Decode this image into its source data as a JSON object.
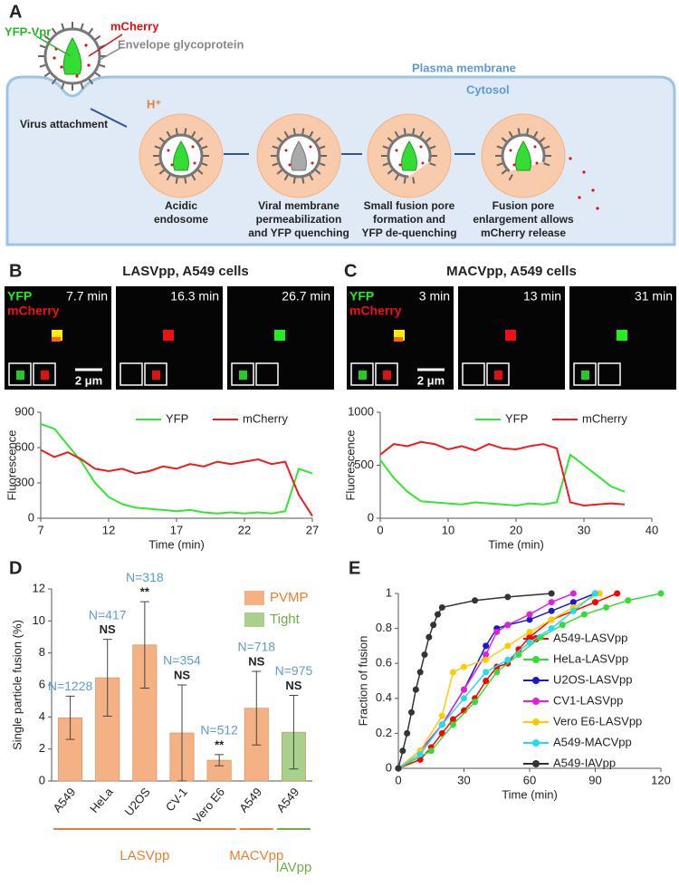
{
  "panel_a": {
    "panel_label": "A",
    "yfp_vpr": "YFP-Vpr",
    "mcherry": "mCherry",
    "envelope": "Envelope glycoprotein",
    "plasma_membrane": "Plasma membrane",
    "cytosol": "Cytosol",
    "virus_attachment": "Virus attachment",
    "proton": "H⁺",
    "steps": [
      [
        "Acidic",
        "endosome"
      ],
      [
        "Viral membrane",
        "permeabilization",
        "and YFP quenching"
      ],
      [
        "Small fusion pore",
        "formation and",
        "YFP de-quenching"
      ],
      [
        "Fusion pore",
        "enlargement allows",
        "mCherry release"
      ]
    ]
  },
  "chart_data": [
    {
      "type": "line",
      "panel_label": "B",
      "title": "LASVpp, A549 cells",
      "images": {
        "channels": [
          "YFP",
          "mCherry"
        ],
        "times": [
          "7.7 min",
          "16.3 min",
          "26.7 min"
        ],
        "scale_bar": "2 μm"
      },
      "x_label": "Time (min)",
      "y_label": "Fluorescence",
      "legend": "top-right",
      "xlim": [
        7,
        27
      ],
      "xticks": [
        7,
        12,
        17,
        22,
        27
      ],
      "ylim": [
        0,
        900
      ],
      "yticks": [
        0,
        300,
        600,
        900
      ],
      "x": [
        7,
        8,
        9,
        10,
        11,
        12,
        13,
        14,
        15,
        16,
        17,
        18,
        19,
        20,
        21,
        22,
        23,
        24,
        25,
        26,
        27
      ],
      "series": [
        {
          "name": "YFP",
          "color": "#33e633",
          "values": [
            800,
            760,
            620,
            480,
            300,
            180,
            120,
            90,
            80,
            70,
            60,
            70,
            50,
            40,
            50,
            40,
            50,
            40,
            60,
            420,
            380
          ]
        },
        {
          "name": "mCherry",
          "color": "#ee1c1c",
          "values": [
            580,
            520,
            560,
            500,
            420,
            400,
            420,
            380,
            400,
            440,
            420,
            460,
            440,
            480,
            460,
            480,
            500,
            460,
            480,
            200,
            20
          ]
        }
      ]
    },
    {
      "type": "line",
      "panel_label": "C",
      "title": "MACVpp, A549 cells",
      "images": {
        "channels": [
          "YFP",
          "mCherry"
        ],
        "times": [
          "3 min",
          "13 min",
          "31 min"
        ],
        "scale_bar": "2 μm"
      },
      "x_label": "Time (min)",
      "y_label": "Fluorescence",
      "legend": "top-right",
      "xlim": [
        0,
        40
      ],
      "xticks": [
        0,
        10,
        20,
        30,
        40
      ],
      "ylim": [
        0,
        1000
      ],
      "yticks": [
        0,
        500,
        1000
      ],
      "x": [
        0,
        2,
        4,
        6,
        8,
        10,
        12,
        14,
        16,
        18,
        20,
        22,
        24,
        26,
        28,
        30,
        32,
        34,
        36
      ],
      "series": [
        {
          "name": "YFP",
          "color": "#33e633",
          "values": [
            550,
            380,
            250,
            160,
            150,
            140,
            130,
            150,
            140,
            130,
            120,
            140,
            130,
            150,
            600,
            500,
            400,
            300,
            250
          ]
        },
        {
          "name": "mCherry",
          "color": "#ee1c1c",
          "values": [
            600,
            700,
            680,
            720,
            700,
            650,
            680,
            640,
            700,
            660,
            650,
            680,
            700,
            660,
            150,
            120,
            130,
            140,
            130
          ]
        }
      ]
    },
    {
      "type": "bar",
      "panel_label": "D",
      "y_label": "Single particle fusion (%)",
      "legend": "top-right",
      "categories": [
        "A549",
        "HeLa",
        "U2OS",
        "CV-1",
        "Vero E6",
        "A549",
        "A549"
      ],
      "ylim": [
        0,
        12
      ],
      "yticks": [
        0,
        2,
        4,
        6,
        8,
        10,
        12
      ],
      "series": [
        {
          "name": "PVMP",
          "color": "#f4b183",
          "text_color": "#ed7d31",
          "values": [
            3.95,
            6.45,
            8.5,
            3.0,
            1.3,
            4.55,
            null
          ],
          "errors": [
            1.35,
            2.4,
            2.7,
            3.0,
            0.35,
            2.3,
            null
          ]
        },
        {
          "name": "Tight",
          "color": "#a9d18e",
          "text_color": "#70ad47",
          "values": [
            null,
            null,
            null,
            null,
            null,
            null,
            3.05
          ],
          "errors": [
            null,
            null,
            null,
            null,
            null,
            null,
            2.3
          ]
        }
      ],
      "n_labels": [
        "N=1228",
        "N=417",
        "N=318",
        "N=354",
        "N=512",
        "N=718",
        "N=975"
      ],
      "significance": [
        null,
        "NS",
        "**",
        "NS",
        "**",
        "NS",
        "NS"
      ],
      "annotation_color": "#5b9bd5",
      "groups": [
        {
          "label": "LASVpp",
          "color": "#ed7d31"
        },
        {
          "label": "MACVpp",
          "color": "#ed7d31"
        },
        {
          "label": "IAVpp",
          "color": "#70ad47"
        }
      ]
    },
    {
      "type": "line",
      "panel_label": "E",
      "x_label": "Time (min)",
      "y_label": "Fraction of fusion",
      "legend": "right",
      "markers": true,
      "xlim": [
        0,
        120
      ],
      "xticks": [
        0,
        30,
        60,
        90,
        120
      ],
      "ylim": [
        0,
        1
      ],
      "yticks": [
        0,
        0.2,
        0.4,
        0.6,
        0.8,
        1
      ],
      "series": [
        {
          "name": "A549-LASVpp",
          "color": "#ff0000",
          "x": [
            0,
            10,
            15,
            20,
            25,
            30,
            35,
            40,
            45,
            50,
            55,
            60,
            70,
            80,
            90,
            100
          ],
          "values": [
            0,
            0.05,
            0.12,
            0.2,
            0.28,
            0.33,
            0.4,
            0.5,
            0.58,
            0.6,
            0.68,
            0.75,
            0.85,
            0.9,
            0.95,
            1
          ]
        },
        {
          "name": "HeLa-LASVpp",
          "color": "#33dd33",
          "x": [
            0,
            15,
            25,
            35,
            45,
            55,
            65,
            75,
            85,
            95,
            105,
            120
          ],
          "values": [
            0,
            0.1,
            0.25,
            0.38,
            0.55,
            0.65,
            0.75,
            0.82,
            0.88,
            0.92,
            0.96,
            1
          ]
        },
        {
          "name": "U2OS-LASVpp",
          "color": "#1a1acc",
          "x": [
            0,
            10,
            20,
            30,
            40,
            45,
            50,
            60,
            70,
            80,
            90
          ],
          "values": [
            0,
            0.1,
            0.25,
            0.45,
            0.7,
            0.8,
            0.82,
            0.85,
            0.9,
            0.95,
            1
          ]
        },
        {
          "name": "CV1-LASVpp",
          "color": "#e020e0",
          "x": [
            0,
            10,
            20,
            30,
            40,
            45,
            50,
            60,
            70,
            80
          ],
          "values": [
            0,
            0.1,
            0.25,
            0.45,
            0.65,
            0.78,
            0.82,
            0.88,
            0.95,
            1
          ]
        },
        {
          "name": "Vero E6-LASVpp",
          "color": "#ffcc00",
          "x": [
            0,
            10,
            20,
            25,
            30,
            40,
            50,
            60,
            70,
            80,
            92
          ],
          "values": [
            0,
            0.1,
            0.3,
            0.55,
            0.58,
            0.62,
            0.7,
            0.78,
            0.85,
            0.92,
            1
          ]
        },
        {
          "name": "A549-MACVpp",
          "color": "#22ddee",
          "x": [
            0,
            10,
            20,
            30,
            40,
            50,
            60,
            70,
            80,
            90
          ],
          "values": [
            0,
            0.08,
            0.25,
            0.4,
            0.55,
            0.62,
            0.72,
            0.8,
            0.9,
            1
          ]
        },
        {
          "name": "A549-IAVpp",
          "color": "#333333",
          "x": [
            0,
            2,
            4,
            6,
            8,
            10,
            12,
            14,
            16,
            18,
            20,
            35,
            50,
            70
          ],
          "values": [
            0,
            0.1,
            0.2,
            0.32,
            0.45,
            0.55,
            0.65,
            0.75,
            0.82,
            0.88,
            0.92,
            0.96,
            0.98,
            1
          ]
        }
      ]
    }
  ]
}
